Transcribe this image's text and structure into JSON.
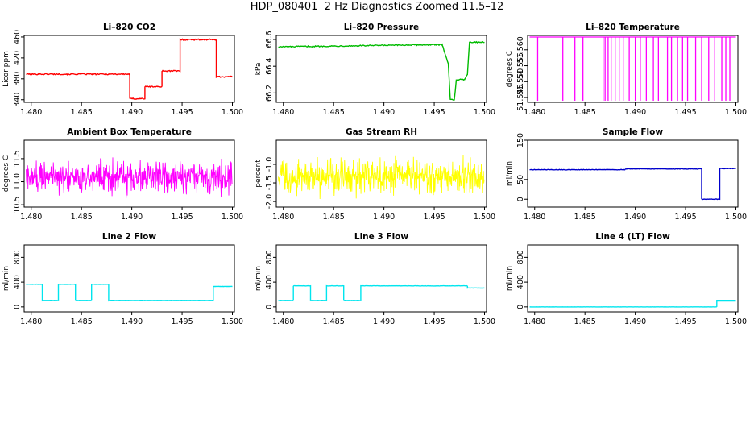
{
  "figure_title": "HDP_080401  2 Hz Diagnostics Zoomed 11.5–12",
  "chart_data": [
    {
      "type": "line",
      "title": "Li–820 CO2",
      "ylabel": "Licor ppm",
      "color": "#ff0000",
      "xlim": [
        1.4793,
        1.5002
      ],
      "ylim": [
        335,
        463
      ],
      "x_ticks": [
        "1.480",
        "1.485",
        "1.490",
        "1.495",
        "1.500"
      ],
      "y_ticks": [
        "340",
        "380",
        "420",
        "460"
      ],
      "y_tick_values": [
        340,
        380,
        420,
        460
      ],
      "x": [
        1.4795,
        1.4898,
        1.4898,
        1.4913,
        1.4913,
        1.493,
        1.493,
        1.4948,
        1.4948,
        1.4984,
        1.4984,
        1.5
      ],
      "y": [
        389,
        389,
        342,
        342,
        365,
        365,
        395,
        395,
        455,
        455,
        384,
        384
      ],
      "noise": 1.2
    },
    {
      "type": "line",
      "title": "Li–820 Pressure",
      "ylabel": "kPa",
      "color": "#00bb00",
      "xlim": [
        1.4793,
        1.5002
      ],
      "ylim": [
        66.13,
        66.63
      ],
      "x_ticks": [
        "1.480",
        "1.485",
        "1.490",
        "1.495",
        "1.500"
      ],
      "y_ticks": [
        "66.2",
        "66.4",
        "66.6"
      ],
      "y_tick_values": [
        66.2,
        66.4,
        66.6
      ],
      "x": [
        1.4795,
        1.494,
        1.4958,
        1.4964,
        1.4966,
        1.497,
        1.4972,
        1.498,
        1.4983,
        1.4985,
        1.5
      ],
      "y": [
        66.545,
        66.56,
        66.56,
        66.42,
        66.15,
        66.15,
        66.3,
        66.3,
        66.34,
        66.58,
        66.58
      ],
      "noise": 0.004
    },
    {
      "type": "spikes",
      "title": "Li–820 Temperature",
      "ylabel": "degrees C",
      "color": "#ff00ff",
      "xlim": [
        1.4793,
        1.5002
      ],
      "ylim": [
        51.5435,
        51.5645
      ],
      "x_ticks": [
        "1.480",
        "1.485",
        "1.490",
        "1.495",
        "1.500"
      ],
      "y_ticks": [
        "51.545",
        "51.550",
        "51.555",
        "51.560"
      ],
      "y_tick_values": [
        51.545,
        51.55,
        51.555,
        51.56
      ],
      "baseline": 51.564,
      "low": 51.544,
      "spike_x": [
        1.4803,
        1.4828,
        1.484,
        1.4848,
        1.4868,
        1.487,
        1.4873,
        1.4876,
        1.488,
        1.4884,
        1.4888,
        1.4894,
        1.49,
        1.4905,
        1.4911,
        1.4918,
        1.4923,
        1.4932,
        1.4936,
        1.4942,
        1.4947,
        1.4952,
        1.496,
        1.4966,
        1.4973,
        1.4979,
        1.4986,
        1.499,
        1.4994
      ]
    },
    {
      "type": "noise",
      "title": "Ambient Box Temperature",
      "ylabel": "degrees C",
      "color": "#ff00ff",
      "xlim": [
        1.4793,
        1.5002
      ],
      "ylim": [
        10.45,
        11.9
      ],
      "x_ticks": [
        "1.480",
        "1.485",
        "1.490",
        "1.495",
        "1.500"
      ],
      "y_ticks": [
        "10.5",
        "11.0",
        "11.5"
      ],
      "y_tick_values": [
        10.5,
        11.0,
        11.5
      ],
      "mean": 11.1,
      "spread": 0.5
    },
    {
      "type": "noise",
      "title": "Gas Stream RH",
      "ylabel": "percent",
      "color": "#ffff00",
      "xlim": [
        1.4793,
        1.5002
      ],
      "ylim": [
        -2.15,
        -0.35
      ],
      "x_ticks": [
        "1.480",
        "1.485",
        "1.490",
        "1.495",
        "1.500"
      ],
      "y_ticks": [
        "-2.0",
        "-1.5",
        "-1.0"
      ],
      "y_tick_values": [
        -2.0,
        -1.5,
        -1.0
      ],
      "mean": -1.35,
      "spread": 0.65
    },
    {
      "type": "line",
      "title": "Sample Flow",
      "ylabel": "ml/min",
      "color": "#0000cc",
      "xlim": [
        1.4793,
        1.5002
      ],
      "ylim": [
        -20,
        150
      ],
      "x_ticks": [
        "1.480",
        "1.485",
        "1.490",
        "1.495",
        "1.500"
      ],
      "y_ticks": [
        "0",
        "50",
        "150"
      ],
      "y_tick_values": [
        0,
        50,
        150
      ],
      "x": [
        1.4795,
        1.489,
        1.489,
        1.4966,
        1.4966,
        1.4984,
        1.4984,
        1.5
      ],
      "y": [
        75,
        75,
        77,
        77,
        0,
        0,
        78,
        78
      ],
      "noise": 0.6
    },
    {
      "type": "line",
      "title": "Line 2 Flow",
      "ylabel": "ml/min",
      "color": "#00e5ee",
      "xlim": [
        1.4793,
        1.5002
      ],
      "ylim": [
        -80,
        1000
      ],
      "x_ticks": [
        "1.480",
        "1.485",
        "1.490",
        "1.495",
        "1.500"
      ],
      "y_ticks": [
        "0",
        "400",
        "800"
      ],
      "y_tick_values": [
        0,
        400,
        800
      ],
      "x": [
        1.4795,
        1.4811,
        1.4811,
        1.4827,
        1.4827,
        1.4844,
        1.4844,
        1.486,
        1.486,
        1.4877,
        1.4877,
        1.4981,
        1.4981,
        1.5
      ],
      "y": [
        365,
        365,
        100,
        100,
        365,
        365,
        100,
        100,
        365,
        365,
        100,
        100,
        330,
        330
      ],
      "noise": 2
    },
    {
      "type": "line",
      "title": "Line 3 Flow",
      "ylabel": "ml/min",
      "color": "#00e5ee",
      "xlim": [
        1.4793,
        1.5002
      ],
      "ylim": [
        -80,
        1000
      ],
      "x_ticks": [
        "1.480",
        "1.485",
        "1.490",
        "1.495",
        "1.500"
      ],
      "y_ticks": [
        "0",
        "400",
        "800"
      ],
      "y_tick_values": [
        0,
        400,
        800
      ],
      "x": [
        1.4795,
        1.481,
        1.481,
        1.4827,
        1.4827,
        1.4843,
        1.4843,
        1.486,
        1.486,
        1.4877,
        1.4877,
        1.4983,
        1.4983,
        1.5
      ],
      "y": [
        100,
        100,
        340,
        340,
        100,
        100,
        340,
        340,
        100,
        100,
        340,
        340,
        305,
        305
      ],
      "noise": 2
    },
    {
      "type": "line",
      "title": "Line 4 (LT) Flow",
      "ylabel": "ml/min",
      "color": "#00e5ee",
      "xlim": [
        1.4793,
        1.5002
      ],
      "ylim": [
        -80,
        1000
      ],
      "x_ticks": [
        "1.480",
        "1.485",
        "1.490",
        "1.495",
        "1.500"
      ],
      "y_ticks": [
        "0",
        "400",
        "800"
      ],
      "y_tick_values": [
        0,
        400,
        800
      ],
      "x": [
        1.4795,
        1.4981,
        1.4981,
        1.5
      ],
      "y": [
        0,
        0,
        95,
        95
      ],
      "noise": 1
    }
  ]
}
